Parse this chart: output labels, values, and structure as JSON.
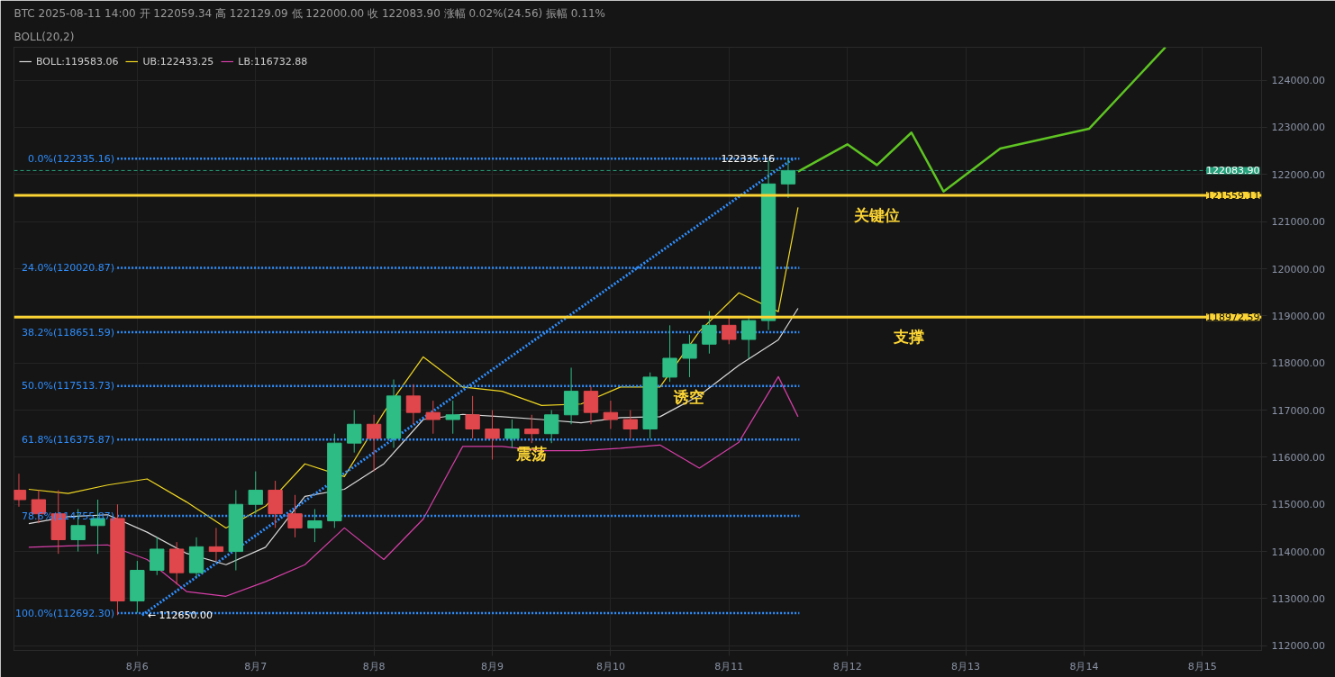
{
  "chart_data": {
    "type": "candlestick",
    "title": "BTC  2025-08-11 14:00  开 122059.34  高 122129.09  低 122000.00  收 122083.90  涨幅 0.02%(24.56)  振幅 0.11%",
    "subtitle": "BOLL(20,2)",
    "x": [
      "2025-08-05T00:00",
      "2025-08-05T04:00",
      "2025-08-05T08:00",
      "2025-08-05T12:00",
      "2025-08-05T16:00",
      "2025-08-05T20:00",
      "2025-08-06T00:00",
      "2025-08-06T04:00",
      "2025-08-06T08:00",
      "2025-08-06T12:00",
      "2025-08-06T16:00",
      "2025-08-06T20:00",
      "2025-08-07T00:00",
      "2025-08-07T04:00",
      "2025-08-07T08:00",
      "2025-08-07T12:00",
      "2025-08-07T16:00",
      "2025-08-07T20:00",
      "2025-08-08T00:00",
      "2025-08-08T04:00",
      "2025-08-08T08:00",
      "2025-08-08T12:00",
      "2025-08-08T16:00",
      "2025-08-08T20:00",
      "2025-08-09T00:00",
      "2025-08-09T04:00",
      "2025-08-09T08:00",
      "2025-08-09T12:00",
      "2025-08-09T16:00",
      "2025-08-09T20:00",
      "2025-08-10T00:00",
      "2025-08-10T04:00",
      "2025-08-10T08:00",
      "2025-08-10T12:00",
      "2025-08-10T16:00",
      "2025-08-10T20:00",
      "2025-08-11T00:00",
      "2025-08-11T04:00",
      "2025-08-11T08:00",
      "2025-08-11T12:00"
    ],
    "ohlc": [
      [
        115300,
        115650,
        114950,
        115100
      ],
      [
        115100,
        115300,
        114600,
        114800
      ],
      [
        114800,
        115300,
        113950,
        114250
      ],
      [
        114250,
        114900,
        114000,
        114550
      ],
      [
        114550,
        115100,
        113950,
        114700
      ],
      [
        114700,
        115000,
        112650,
        112950
      ],
      [
        112950,
        113800,
        112700,
        113600
      ],
      [
        113600,
        114300,
        113500,
        114050
      ],
      [
        114050,
        114200,
        113300,
        113550
      ],
      [
        113550,
        114300,
        113450,
        114100
      ],
      [
        114100,
        114500,
        113800,
        114000
      ],
      [
        114000,
        115300,
        113600,
        115000
      ],
      [
        115000,
        115700,
        114800,
        115300
      ],
      [
        115300,
        115500,
        114500,
        114800
      ],
      [
        114800,
        115200,
        114300,
        114500
      ],
      [
        114500,
        114900,
        114200,
        114650
      ],
      [
        114650,
        116500,
        114500,
        116300
      ],
      [
        116300,
        117000,
        116100,
        116700
      ],
      [
        116700,
        116900,
        115700,
        116400
      ],
      [
        116400,
        117650,
        116200,
        117300
      ],
      [
        117300,
        117550,
        116700,
        116950
      ],
      [
        116950,
        117200,
        116500,
        116800
      ],
      [
        116800,
        117200,
        116500,
        116900
      ],
      [
        116900,
        117300,
        116400,
        116600
      ],
      [
        116600,
        117000,
        115950,
        116400
      ],
      [
        116400,
        116800,
        116200,
        116600
      ],
      [
        116600,
        116900,
        116300,
        116500
      ],
      [
        116500,
        117000,
        116300,
        116900
      ],
      [
        116900,
        117900,
        116700,
        117400
      ],
      [
        117400,
        117500,
        116700,
        116950
      ],
      [
        116950,
        117200,
        116600,
        116800
      ],
      [
        116800,
        117000,
        116400,
        116600
      ],
      [
        116600,
        117800,
        116400,
        117700
      ],
      [
        117700,
        118800,
        117600,
        118100
      ],
      [
        118100,
        118600,
        117700,
        118400
      ],
      [
        118400,
        119100,
        118200,
        118800
      ],
      [
        118800,
        119000,
        118400,
        118500
      ],
      [
        118500,
        119000,
        118100,
        118900
      ],
      [
        118900,
        122300,
        118700,
        121800
      ],
      [
        121800,
        122335.16,
        121500,
        122083.9
      ]
    ],
    "colors": [
      "#e0474c",
      "#e0474c",
      "#e0474c",
      "#2dbd85",
      "#2dbd85",
      "#e0474c",
      "#2dbd85",
      "#2dbd85",
      "#e0474c",
      "#2dbd85",
      "#e0474c",
      "#2dbd85",
      "#2dbd85",
      "#e0474c",
      "#e0474c",
      "#2dbd85",
      "#2dbd85",
      "#2dbd85",
      "#e0474c",
      "#2dbd85",
      "#e0474c",
      "#e0474c",
      "#2dbd85",
      "#e0474c",
      "#e0474c",
      "#2dbd85",
      "#e0474c",
      "#2dbd85",
      "#2dbd85",
      "#e0474c",
      "#e0474c",
      "#e0474c",
      "#2dbd85",
      "#2dbd85",
      "#2dbd85",
      "#2dbd85",
      "#e0474c",
      "#2dbd85",
      "#2dbd85",
      "#2dbd85"
    ],
    "series": [
      {
        "name": "BOLL:119583.06",
        "color": "#d9d9d9",
        "type": "line",
        "x": [
          "2025-08-05T02:00",
          "2025-08-05T10:00",
          "2025-08-05T18:00",
          "2025-08-06T02:00",
          "2025-08-06T10:00",
          "2025-08-06T18:00",
          "2025-08-07T02:00",
          "2025-08-07T10:00",
          "2025-08-07T18:00",
          "2025-08-08T02:00",
          "2025-08-08T10:00",
          "2025-08-08T18:00",
          "2025-08-09T02:00",
          "2025-08-09T10:00",
          "2025-08-09T18:00",
          "2025-08-10T02:00",
          "2025-08-10T10:00",
          "2025-08-10T18:00",
          "2025-08-11T02:00",
          "2025-08-11T10:00",
          "2025-08-11T14:00"
        ],
        "values": [
          114590,
          114740,
          114780,
          114410,
          113960,
          113720,
          114090,
          115170,
          115320,
          115860,
          116800,
          116910,
          116860,
          116800,
          116730,
          116840,
          116860,
          117310,
          117950,
          118490,
          119160
        ]
      },
      {
        "name": "UB:122433.25",
        "color": "#f0d722",
        "type": "line",
        "x": [
          "2025-08-05T02:00",
          "2025-08-05T10:00",
          "2025-08-05T18:00",
          "2025-08-06T02:00",
          "2025-08-06T10:00",
          "2025-08-06T18:00",
          "2025-08-07T02:00",
          "2025-08-07T10:00",
          "2025-08-07T18:00",
          "2025-08-08T02:00",
          "2025-08-08T10:00",
          "2025-08-08T18:00",
          "2025-08-09T02:00",
          "2025-08-09T10:00",
          "2025-08-09T18:00",
          "2025-08-10T02:00",
          "2025-08-10T10:00",
          "2025-08-10T18:00",
          "2025-08-11T02:00",
          "2025-08-11T10:00",
          "2025-08-11T14:00"
        ],
        "values": [
          115320,
          115230,
          115410,
          115540,
          115050,
          114500,
          114960,
          115860,
          115590,
          116950,
          118130,
          117490,
          117400,
          117100,
          117130,
          117490,
          117490,
          118670,
          119490,
          119090,
          121300
        ]
      },
      {
        "name": "LB:116732.88",
        "color": "#d63fa8",
        "type": "line",
        "x": [
          "2025-08-05T02:00",
          "2025-08-05T10:00",
          "2025-08-05T18:00",
          "2025-08-06T02:00",
          "2025-08-06T10:00",
          "2025-08-06T18:00",
          "2025-08-07T02:00",
          "2025-08-07T10:00",
          "2025-08-07T18:00",
          "2025-08-08T02:00",
          "2025-08-08T10:00",
          "2025-08-08T18:00",
          "2025-08-09T02:00",
          "2025-08-09T10:00",
          "2025-08-09T18:00",
          "2025-08-10T02:00",
          "2025-08-10T10:00",
          "2025-08-10T18:00",
          "2025-08-11T02:00",
          "2025-08-11T10:00",
          "2025-08-11T14:00"
        ],
        "values": [
          114090,
          114120,
          114140,
          113830,
          113150,
          113050,
          113360,
          113720,
          114500,
          113830,
          114690,
          116230,
          116230,
          116140,
          116140,
          116190,
          116260,
          115770,
          116320,
          117710,
          116860
        ]
      },
      {
        "color": "#2f8fff",
        "type": "line",
        "line_style": "dotted",
        "x": [
          "2025-08-06T01:00",
          "2025-08-11T13:00"
        ],
        "values": [
          112650,
          122335.16
        ]
      },
      {
        "color": "#5ec423",
        "type": "line",
        "x": [
          "2025-08-11T14:00",
          "2025-08-12T00:00",
          "2025-08-12T06:00",
          "2025-08-12T13:00",
          "2025-08-12T19:30",
          "2025-08-13T07:00",
          "2025-08-14T01:00",
          "2025-08-14T16:30"
        ],
        "values": [
          122060,
          122640,
          122200,
          122890,
          121640,
          122550,
          122970,
          124700
        ]
      }
    ],
    "ref_lines": [
      {
        "axis": "y",
        "value": 122335.16,
        "label": "0.0%(122335.16)",
        "color": "#2f8fff",
        "line_style": "dotted"
      },
      {
        "axis": "y",
        "value": 120020.87,
        "label": "24.0%(120020.87)",
        "color": "#2f8fff",
        "line_style": "dotted"
      },
      {
        "axis": "y",
        "value": 118651.59,
        "label": "38.2%(118651.59)",
        "color": "#2f8fff",
        "line_style": "dotted"
      },
      {
        "axis": "y",
        "value": 117513.73,
        "label": "50.0%(117513.73)",
        "color": "#2f8fff",
        "line_style": "dotted"
      },
      {
        "axis": "y",
        "value": 116375.87,
        "label": "61.8%(116375.87)",
        "color": "#2f8fff",
        "line_style": "dotted"
      },
      {
        "axis": "y",
        "value": 114755.87,
        "label": "78.6%(114755.87)",
        "color": "#2f8fff",
        "line_style": "dotted"
      },
      {
        "axis": "y",
        "value": 112692.3,
        "label": "100.0%(112692.30)",
        "color": "#2f8fff",
        "line_style": "dotted"
      },
      {
        "axis": "y",
        "value": 122083.9,
        "label": "122083.90",
        "color": "#26a17b",
        "line_style": "dashed"
      },
      {
        "axis": "y",
        "value": 121559.11,
        "label": "121559.11",
        "color": "#fcd535",
        "line_style": "solid"
      },
      {
        "axis": "y",
        "value": 118972.59,
        "label": "118972.59",
        "color": "#fcd535",
        "line_style": "solid"
      }
    ],
    "annotations": [
      {
        "text": "122335.16",
        "x": "2025-08-11T10:00",
        "y": 122335.16
      },
      {
        "text": "← 112650.00",
        "x": "2025-08-06T01:00",
        "y": 112650
      },
      {
        "text": "关键位",
        "x": "2025-08-12T06:00",
        "y": 121559.11
      },
      {
        "text": "支撑",
        "x": "2025-08-12T12:30",
        "y": 118972.59
      },
      {
        "text": "诱空",
        "x": "2025-08-10T16:00",
        "y": 117700
      },
      {
        "text": "震荡",
        "x": "2025-08-09T08:00",
        "y": 116500
      }
    ],
    "xlim": [
      "2025-08-04T23:00",
      "2025-08-15T12:00"
    ],
    "xticks": [
      {
        "value": "2025-08-06",
        "label": "8月6"
      },
      {
        "value": "2025-08-07",
        "label": "8月7"
      },
      {
        "value": "2025-08-08",
        "label": "8月8"
      },
      {
        "value": "2025-08-09",
        "label": "8月9"
      },
      {
        "value": "2025-08-10",
        "label": "8月10"
      },
      {
        "value": "2025-08-11",
        "label": "8月11"
      },
      {
        "value": "2025-08-12",
        "label": "8月12"
      },
      {
        "value": "2025-08-13",
        "label": "8月13"
      },
      {
        "value": "2025-08-14",
        "label": "8月14"
      },
      {
        "value": "2025-08-15",
        "label": "8月15"
      }
    ],
    "ylim": [
      111900,
      124700
    ],
    "yticks": [
      {
        "value": 112000,
        "label": "112000.00"
      },
      {
        "value": 113000,
        "label": "113000.00"
      },
      {
        "value": 114000,
        "label": "114000.00"
      },
      {
        "value": 115000,
        "label": "115000.00"
      },
      {
        "value": 116000,
        "label": "116000.00"
      },
      {
        "value": 117000,
        "label": "117000.00"
      },
      {
        "value": 118000,
        "label": "118000.00"
      },
      {
        "value": 119000,
        "label": "119000.00"
      },
      {
        "value": 120000,
        "label": "120000.00"
      },
      {
        "value": 121000,
        "label": "121000.00"
      },
      {
        "value": 122000,
        "label": "122000.00"
      },
      {
        "value": 123000,
        "label": "123000.00"
      },
      {
        "value": 124000,
        "label": "124000.00"
      }
    ],
    "grid": true,
    "legend": "top left"
  }
}
